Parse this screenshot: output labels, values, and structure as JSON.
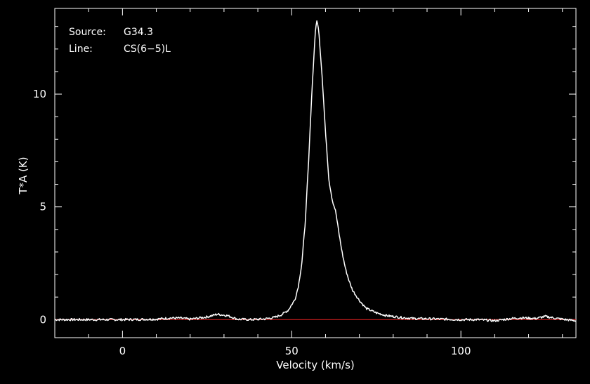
{
  "chart_data": {
    "type": "line",
    "title": "",
    "xlabel": "Velocity (km/s)",
    "ylabel": "T*A (K)",
    "xlim": [
      -20,
      134
    ],
    "ylim": [
      -0.8,
      13.8
    ],
    "x_ticks": [
      "0",
      "50",
      "100"
    ],
    "y_ticks": [
      "0",
      "5",
      "10"
    ],
    "info": {
      "source_key": "Source:",
      "source_value": "G34.3",
      "line_key": "Line:",
      "line_value": "CS(6−5)L"
    },
    "colors": {
      "background": "#000000",
      "spectrum": "#ffffff",
      "baseline": "#d22020",
      "axes": "#ffffff"
    },
    "grid": false,
    "series": [
      {
        "x": [
          -20,
          -10,
          0,
          10,
          14,
          17,
          20,
          25,
          28,
          31,
          34,
          38,
          42,
          45,
          47,
          49,
          51,
          52,
          53,
          54,
          55,
          56,
          57,
          57.5,
          58,
          59,
          60,
          61,
          62,
          63,
          64,
          65,
          66,
          67,
          68,
          70,
          72,
          75,
          78,
          82,
          86,
          90,
          95,
          100,
          105,
          110,
          115,
          118,
          122,
          125,
          128,
          131,
          134
        ],
        "y": [
          0.0,
          0.0,
          0.0,
          0.02,
          0.07,
          0.07,
          0.02,
          0.12,
          0.24,
          0.18,
          0.02,
          0.0,
          0.03,
          0.1,
          0.22,
          0.42,
          0.9,
          1.5,
          2.5,
          4.3,
          7.0,
          10.2,
          12.8,
          13.3,
          12.8,
          10.8,
          8.3,
          6.2,
          5.3,
          4.8,
          3.8,
          2.9,
          2.2,
          1.7,
          1.3,
          0.85,
          0.5,
          0.3,
          0.18,
          0.1,
          0.05,
          0.04,
          0.02,
          0.0,
          0.0,
          -0.05,
          0.05,
          0.08,
          0.05,
          0.14,
          0.06,
          0.0,
          -0.05
        ]
      }
    ],
    "baseline": {
      "y": 0
    }
  }
}
